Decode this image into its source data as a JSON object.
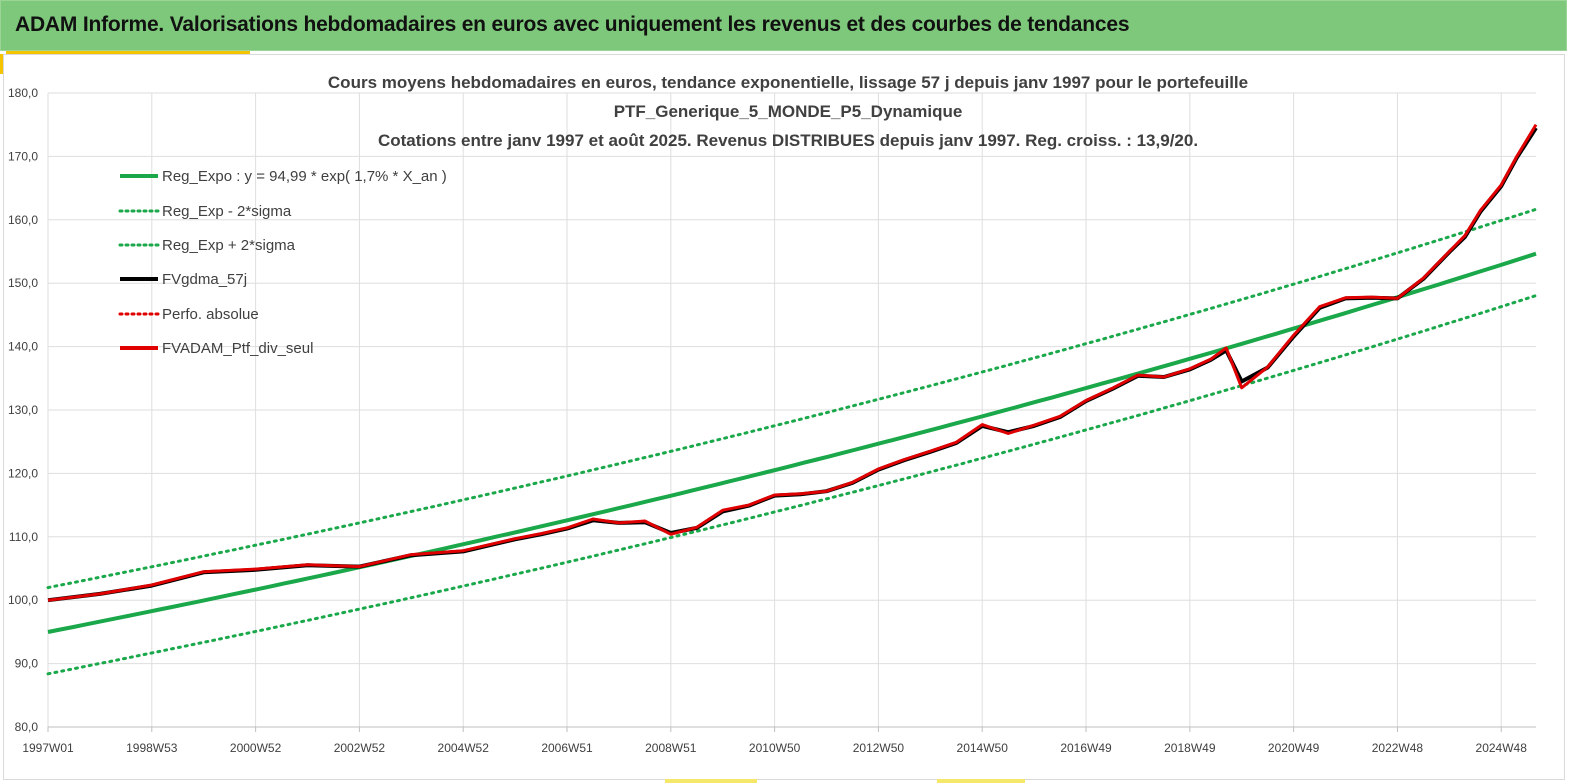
{
  "header": {
    "title": "ADAM Informe. Valorisations hebdomadaires en euros avec uniquement les revenus et des courbes de tendances"
  },
  "colors": {
    "banner": "#7dc87a",
    "trend": "#1aa84a",
    "smoothed": "#000000",
    "portfolio": "#e00000",
    "accent": "#f5c400"
  },
  "chart_data": {
    "type": "line",
    "title_lines": [
      "Cours moyens hebdomadaires  en euros, tendance exponentielle, lissage 57 j depuis janv 1997 pour le portefeuille",
      "PTF_Generique_5_MONDE_P5_Dynamique",
      "Cotations  entre janv 1997 et août  2025. Revenus DISTRIBUES depuis janv 1997. Reg. croiss. : 13,9/20."
    ],
    "x_ticks": [
      "1997W01",
      "1998W53",
      "2000W52",
      "2002W52",
      "2004W52",
      "2006W51",
      "2008W51",
      "2010W50",
      "2012W50",
      "2014W50",
      "2016W49",
      "2018W49",
      "2020W49",
      "2022W48",
      "2024W48"
    ],
    "y_ticks": [
      "80,0",
      "90,0",
      "100,0",
      "110,0",
      "120,0",
      "130,0",
      "140,0",
      "150,0",
      "160,0",
      "170,0",
      "180,0"
    ],
    "ylim": [
      80,
      180
    ],
    "xlim": [
      1997.0,
      2025.67
    ],
    "grid": true,
    "legend_position": "top-left",
    "legend": [
      {
        "label": "Reg_Expo : y = 94,99 * exp( 1,7% *  X_an )",
        "style": "solid",
        "color": "#1aa84a"
      },
      {
        "label": "Reg_Exp - 2*sigma",
        "style": "dotted",
        "color": "#1aa84a"
      },
      {
        "label": "Reg_Exp + 2*sigma",
        "style": "dotted",
        "color": "#1aa84a"
      },
      {
        "label": "FVgdma_57j",
        "style": "solid",
        "color": "#000000"
      },
      {
        "label": "Perfo. absolue",
        "style": "dotted",
        "color": "#e00000"
      },
      {
        "label": "FVADAM_Ptf_div_seul",
        "style": "solid",
        "color": "#e00000"
      }
    ],
    "regression": {
      "a": 94.99,
      "rate": 0.017,
      "lower_offset": -6.6,
      "upper_offset": 7.0
    },
    "series": [
      {
        "name": "FVADAM_Ptf_div_seul",
        "x": [
          1997.0,
          1998.0,
          1999.0,
          2000.0,
          2001.0,
          2002.0,
          2003.0,
          2004.0,
          2005.0,
          2006.0,
          2006.5,
          2007.0,
          2007.5,
          2008.0,
          2008.5,
          2009.0,
          2009.5,
          2010.0,
          2010.5,
          2011.0,
          2011.5,
          2012.0,
          2012.5,
          2013.0,
          2013.5,
          2014.0,
          2014.5,
          2015.0,
          2015.5,
          2016.0,
          2016.5,
          2017.0,
          2017.5,
          2018.0,
          2018.5,
          2019.0,
          2019.4,
          2019.7,
          2020.0,
          2020.5,
          2021.0,
          2021.5,
          2022.0,
          2022.5,
          2023.0,
          2023.5,
          2024.0,
          2024.3,
          2024.6,
          2025.0,
          2025.3,
          2025.67
        ],
        "values": [
          100.0,
          101.0,
          102.4,
          104.5,
          104.9,
          105.6,
          105.3,
          107.2,
          107.8,
          109.7,
          110.5,
          111.4,
          112.8,
          112.2,
          112.5,
          110.4,
          111.5,
          114.2,
          115.0,
          116.6,
          116.8,
          117.2,
          118.6,
          120.7,
          122.2,
          123.5,
          124.9,
          127.7,
          126.3,
          127.6,
          129.0,
          131.5,
          133.4,
          135.5,
          135.2,
          136.5,
          138.0,
          139.8,
          133.5,
          136.8,
          141.8,
          146.3,
          147.7,
          147.8,
          147.6,
          150.8,
          155.0,
          157.5,
          161.5,
          165.5,
          170.0,
          175.0
        ]
      },
      {
        "name": "FVgdma_57j",
        "x": [
          1997.0,
          1998.0,
          1999.0,
          2000.0,
          2001.0,
          2002.0,
          2003.0,
          2004.0,
          2005.0,
          2006.0,
          2006.5,
          2007.0,
          2007.5,
          2008.0,
          2008.5,
          2009.0,
          2009.5,
          2010.0,
          2010.5,
          2011.0,
          2011.5,
          2012.0,
          2012.5,
          2013.0,
          2013.5,
          2014.0,
          2014.5,
          2015.0,
          2015.5,
          2016.0,
          2016.5,
          2017.0,
          2017.5,
          2018.0,
          2018.5,
          2019.0,
          2019.4,
          2019.7,
          2020.0,
          2020.5,
          2021.0,
          2021.5,
          2022.0,
          2022.5,
          2023.0,
          2023.5,
          2024.0,
          2024.3,
          2024.6,
          2025.0,
          2025.3,
          2025.67
        ],
        "values": [
          100.0,
          101.0,
          102.3,
          104.4,
          104.8,
          105.5,
          105.3,
          107.1,
          107.7,
          109.6,
          110.4,
          111.3,
          112.6,
          112.2,
          112.3,
          110.6,
          111.4,
          114.0,
          114.9,
          116.5,
          116.7,
          117.2,
          118.5,
          120.6,
          122.1,
          123.4,
          124.8,
          127.5,
          126.5,
          127.5,
          128.9,
          131.4,
          133.3,
          135.4,
          135.2,
          136.4,
          137.9,
          139.4,
          134.5,
          136.7,
          141.6,
          146.1,
          147.6,
          147.7,
          147.6,
          150.7,
          154.9,
          157.3,
          161.3,
          165.3,
          169.8,
          174.5
        ]
      }
    ]
  }
}
